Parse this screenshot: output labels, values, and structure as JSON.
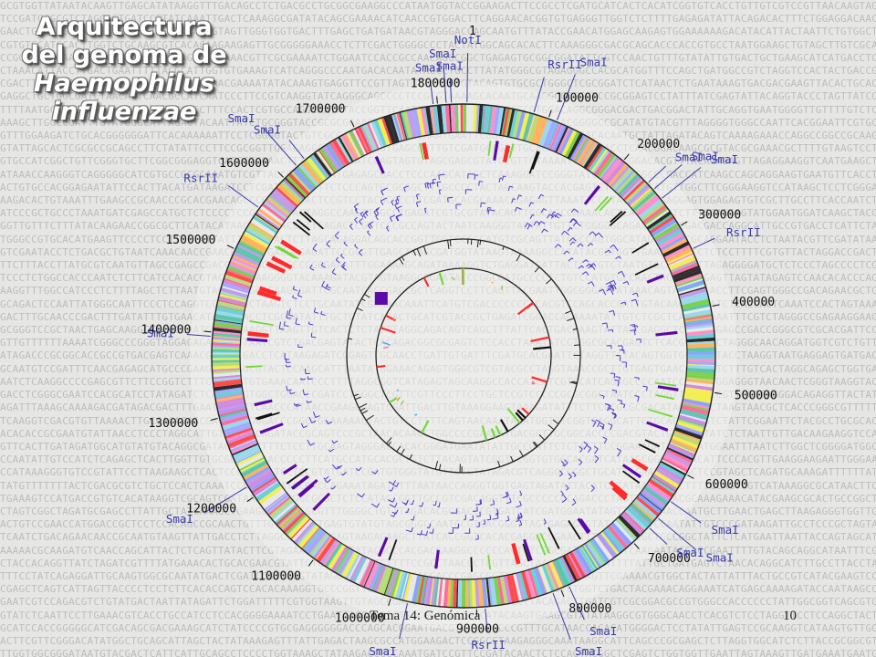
{
  "slide": {
    "title_line1": "Arquitectura",
    "title_line2": "del genoma de",
    "title_line3": "Haemophilus",
    "title_line4": "influenzae",
    "footer": "Tema 14: Genómica",
    "page_number": "10"
  },
  "genome_map": {
    "origin_label": "1",
    "coordinate_labels": [
      {
        "label": "100000",
        "pos": 100000
      },
      {
        "label": "200000",
        "pos": 200000
      },
      {
        "label": "300000",
        "pos": 300000
      },
      {
        "label": "400000",
        "pos": 400000
      },
      {
        "label": "500000",
        "pos": 500000
      },
      {
        "label": "600000",
        "pos": 600000
      },
      {
        "label": "700000",
        "pos": 700000
      },
      {
        "label": "800000",
        "pos": 800000
      },
      {
        "label": "900000",
        "pos": 900000
      },
      {
        "label": "1000000",
        "pos": 1000000
      },
      {
        "label": "1100000",
        "pos": 1100000
      },
      {
        "label": "1200000",
        "pos": 1200000
      },
      {
        "label": "1300000",
        "pos": 1300000
      },
      {
        "label": "1400000",
        "pos": 1400000
      },
      {
        "label": "1500000",
        "pos": 1500000
      },
      {
        "label": "1600000",
        "pos": 1600000
      },
      {
        "label": "1700000",
        "pos": 1700000
      },
      {
        "label": "1800000",
        "pos": 1800000
      }
    ],
    "restriction_sites": [
      {
        "label": "SmaI",
        "pos": 1816000
      },
      {
        "label": "SmaI",
        "pos": 1810000
      },
      {
        "label": "NotI",
        "pos": 4000
      },
      {
        "label": "SmaI",
        "pos": 1795000
      },
      {
        "label": "RsrII",
        "pos": 82000
      },
      {
        "label": "SmaI",
        "pos": 110000
      },
      {
        "label": "SmaI",
        "pos": 238000
      },
      {
        "label": "SmaI",
        "pos": 248000
      },
      {
        "label": "SmaI",
        "pos": 262000
      },
      {
        "label": "RsrII",
        "pos": 330000
      },
      {
        "label": "SmaI",
        "pos": 636000
      },
      {
        "label": "SmaI",
        "pos": 660000
      },
      {
        "label": "SmaI",
        "pos": 675000
      },
      {
        "label": "SmaI",
        "pos": 790000
      },
      {
        "label": "SmaI",
        "pos": 810000
      },
      {
        "label": "RsrII",
        "pos": 890000
      },
      {
        "label": "SmaI",
        "pos": 980000
      },
      {
        "label": "SmaI",
        "pos": 1214000
      },
      {
        "label": "SmaI",
        "pos": 1395000
      },
      {
        "label": "RsrII",
        "pos": 1555000
      },
      {
        "label": "SmaI",
        "pos": 1620000
      },
      {
        "label": "SmaI",
        "pos": 1632000
      }
    ],
    "colors": {
      "red": "#ff2a2a",
      "black": "#111111",
      "purple": "#5a0aa8",
      "green": "#72d83a",
      "gene_line": "#4a3ad0"
    }
  }
}
